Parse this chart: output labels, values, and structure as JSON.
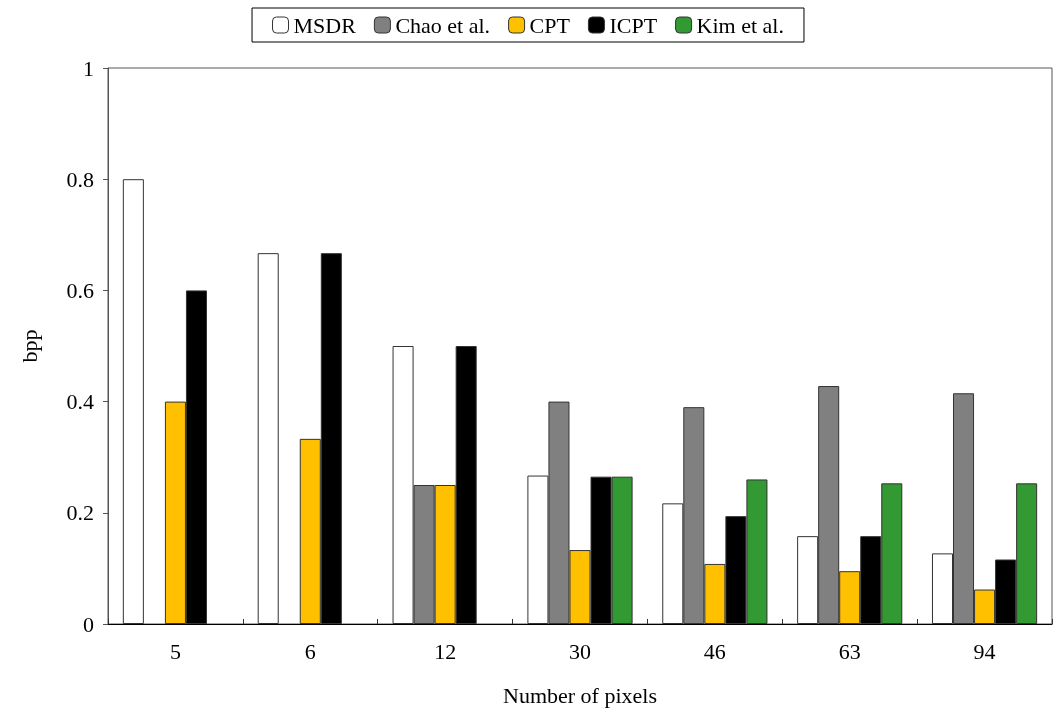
{
  "chart_data": {
    "type": "bar",
    "xlabel": "Number of pixels",
    "ylabel": "bpp",
    "categories": [
      "5",
      "6",
      "12",
      "30",
      "46",
      "63",
      "94"
    ],
    "series": [
      {
        "name": "MSDR",
        "color": "#ffffff",
        "values": [
          0.8,
          0.667,
          0.5,
          0.267,
          0.217,
          0.158,
          0.127
        ]
      },
      {
        "name": "Chao et al.",
        "color": "#808080",
        "values": [
          null,
          null,
          0.25,
          0.4,
          0.39,
          0.428,
          0.415
        ]
      },
      {
        "name": "CPT",
        "color": "#ffc000",
        "values": [
          0.4,
          0.333,
          0.25,
          0.133,
          0.108,
          0.095,
          0.062
        ]
      },
      {
        "name": "ICPT",
        "color": "#000000",
        "values": [
          0.6,
          0.667,
          0.5,
          0.265,
          0.194,
          0.158,
          0.116
        ]
      },
      {
        "name": "Kim et al.",
        "color": "#339933",
        "values": [
          null,
          null,
          null,
          0.265,
          0.26,
          0.253,
          0.253
        ]
      }
    ],
    "ylim": [
      0,
      1
    ],
    "yticks": [
      0,
      0.2,
      0.4,
      0.6,
      0.8,
      1
    ],
    "grid": false,
    "legend": "top"
  }
}
